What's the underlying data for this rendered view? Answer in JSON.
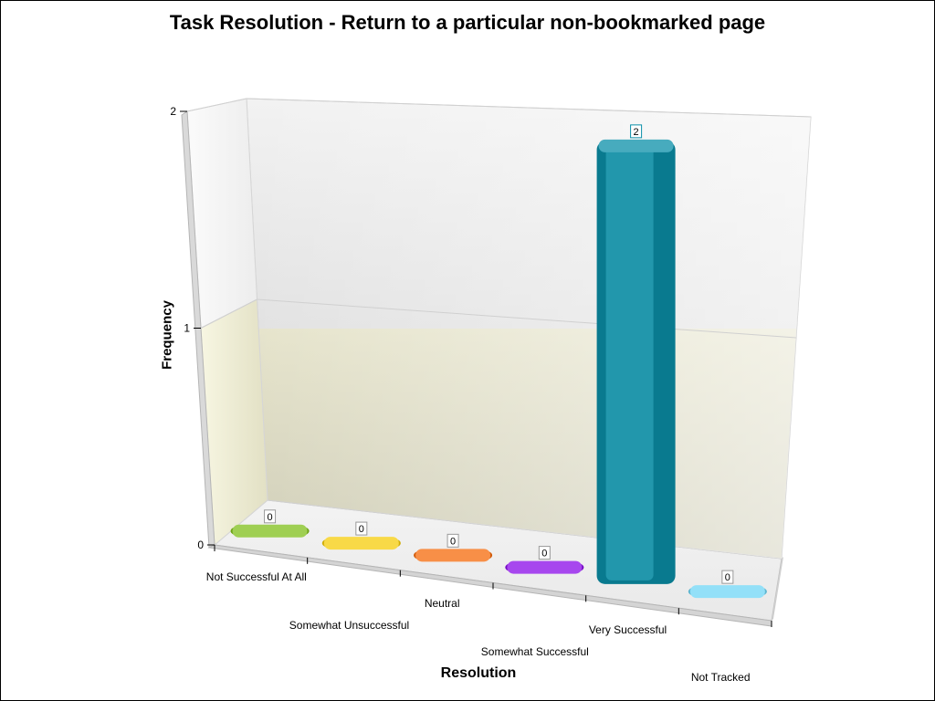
{
  "chart_data": {
    "type": "bar",
    "title": "Task Resolution - Return to a particular non-bookmarked page",
    "xlabel": "Resolution",
    "ylabel": "Frequency",
    "categories": [
      "Not Successful At All",
      "Somewhat Unsuccessful",
      "Neutral",
      "Somewhat Successful",
      "Very Successful",
      "Not Tracked"
    ],
    "values": [
      0,
      0,
      0,
      0,
      2,
      0
    ],
    "data_labels": [
      "0",
      "0",
      "0",
      "0",
      "2",
      "0"
    ],
    "colors": [
      "#7fbf1a",
      "#f5cc0a",
      "#f56a0a",
      "#8a0ae8",
      "#0a8fa8",
      "#6fd6f5"
    ],
    "ylim": [
      0,
      2
    ],
    "yticks": [
      "0",
      "1",
      "2"
    ],
    "style": "3d",
    "grid": true
  }
}
